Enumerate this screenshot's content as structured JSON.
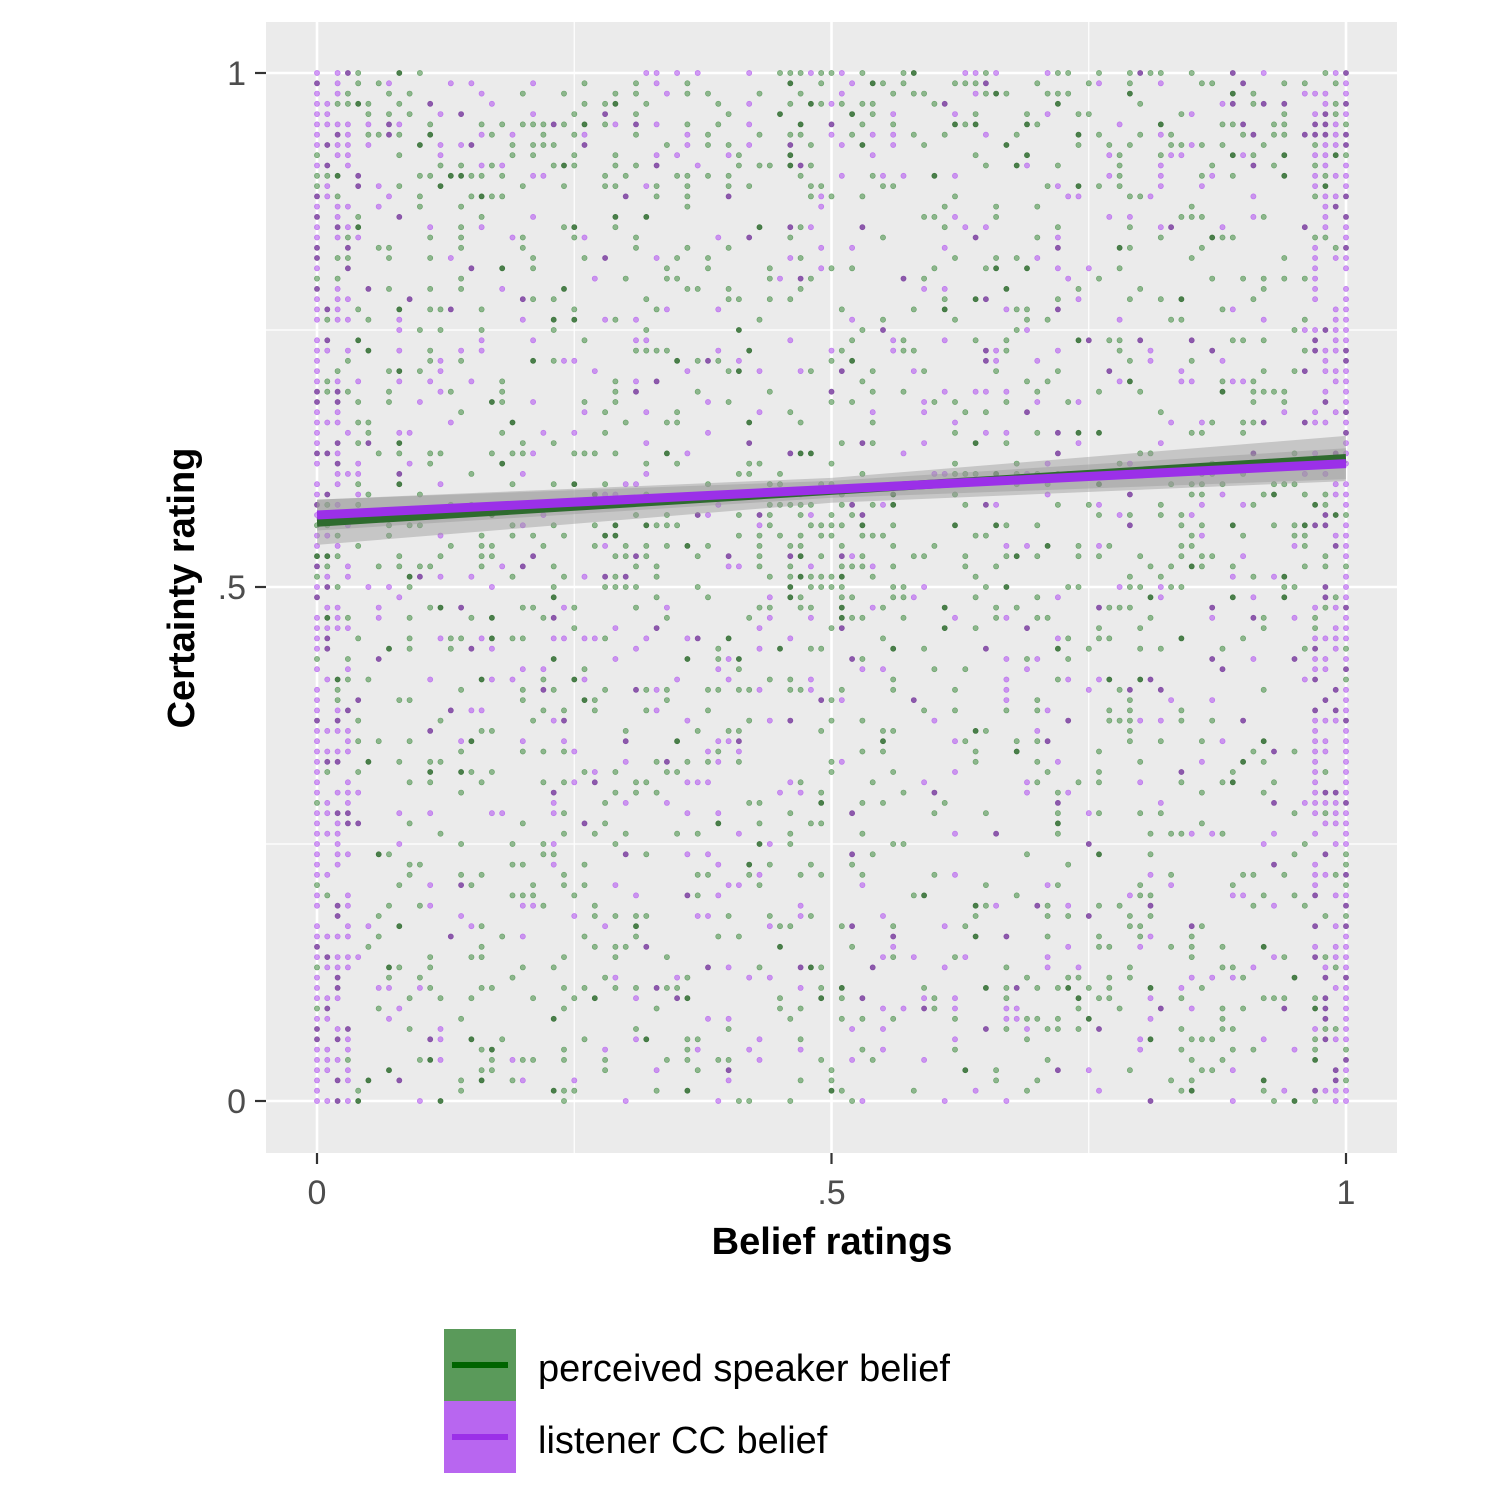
{
  "chart_data": {
    "type": "scatter",
    "title": "",
    "xlabel": "Belief ratings",
    "ylabel": "Certainty rating",
    "xlim": [
      0,
      1
    ],
    "ylim": [
      0,
      1
    ],
    "x_ticks": [
      {
        "value": 0,
        "label": "0"
      },
      {
        "value": 0.5,
        "label": ".5"
      },
      {
        "value": 1,
        "label": "1"
      }
    ],
    "y_ticks": [
      {
        "value": 0,
        "label": "0"
      },
      {
        "value": 0.5,
        "label": ".5"
      },
      {
        "value": 1,
        "label": "1"
      }
    ],
    "grid": true,
    "legend_position": "bottom",
    "series": [
      {
        "name": "perceived speaker belief",
        "point_color": "#5a9a5a",
        "point_dark_color": "#2e6b2e",
        "line_color": "#2e6b2e",
        "legend_fill": "#5a9a5a",
        "legend_line": "#006400",
        "fit": {
          "intercept": 0.563,
          "slope": 0.062,
          "ci_halfwidth": 0.022
        }
      },
      {
        "name": "listener CC belief",
        "point_color": "#b866f0",
        "point_dark_color": "#7b3fa0",
        "line_color": "#9b30e8",
        "legend_fill": "#b866f0",
        "legend_line": "#9b30e8",
        "fit": {
          "intercept": 0.57,
          "slope": 0.05,
          "ci_halfwidth": 0.015
        }
      }
    ],
    "points_note": "Jittered grid of ratings on a 0.01 step; values concentrated at x=0, x=1 and near x=0.5, y=0.5"
  }
}
